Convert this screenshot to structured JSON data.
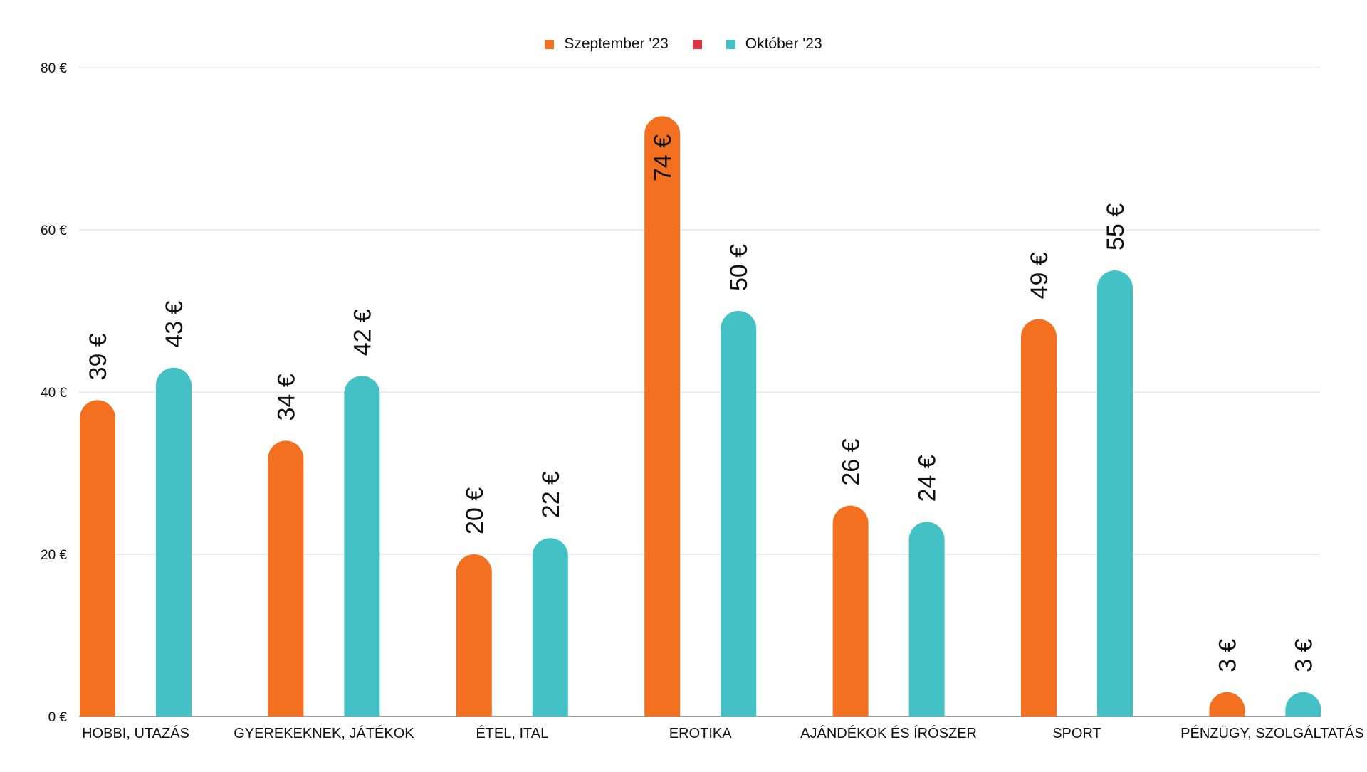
{
  "chart_data": {
    "type": "bar",
    "title": "",
    "xlabel": "",
    "ylabel": "",
    "ylim": [
      0,
      80
    ],
    "yticks": [
      0,
      20,
      40,
      60,
      80
    ],
    "ytick_labels": [
      "0 €",
      "20 €",
      "40 €",
      "60 €",
      "80 €"
    ],
    "grid": true,
    "legend_position": "top-center",
    "legend": [
      {
        "label": "Szeptember '23",
        "color": "#F37021"
      },
      {
        "label": "",
        "color": "#DD3444"
      },
      {
        "label": "Október '23",
        "color": "#43C1C5"
      }
    ],
    "categories": [
      "HOBBI, UTAZÁS",
      "GYEREKEKNEK, JÁTÉKOK",
      "ÉTEL, ITAL",
      "EROTIKA",
      "AJÁNDÉKOK ÉS ÍRÓSZER",
      "SPORT",
      "PÉNZÜGY, SZOLGÁLTATÁS"
    ],
    "series": [
      {
        "name": "Szeptember '23",
        "color": "#F37021",
        "values": [
          39,
          34,
          20,
          74,
          26,
          49,
          3
        ],
        "labels": [
          "39 €",
          "34 €",
          "20 €",
          "74 €",
          "26 €",
          "49 €",
          "3 €"
        ]
      },
      {
        "name": "Október '23",
        "color": "#43C1C5",
        "values": [
          43,
          42,
          22,
          50,
          24,
          55,
          3
        ],
        "labels": [
          "43 €",
          "42 €",
          "22 €",
          "50 €",
          "24 €",
          "55 €",
          "3 €"
        ]
      }
    ]
  }
}
